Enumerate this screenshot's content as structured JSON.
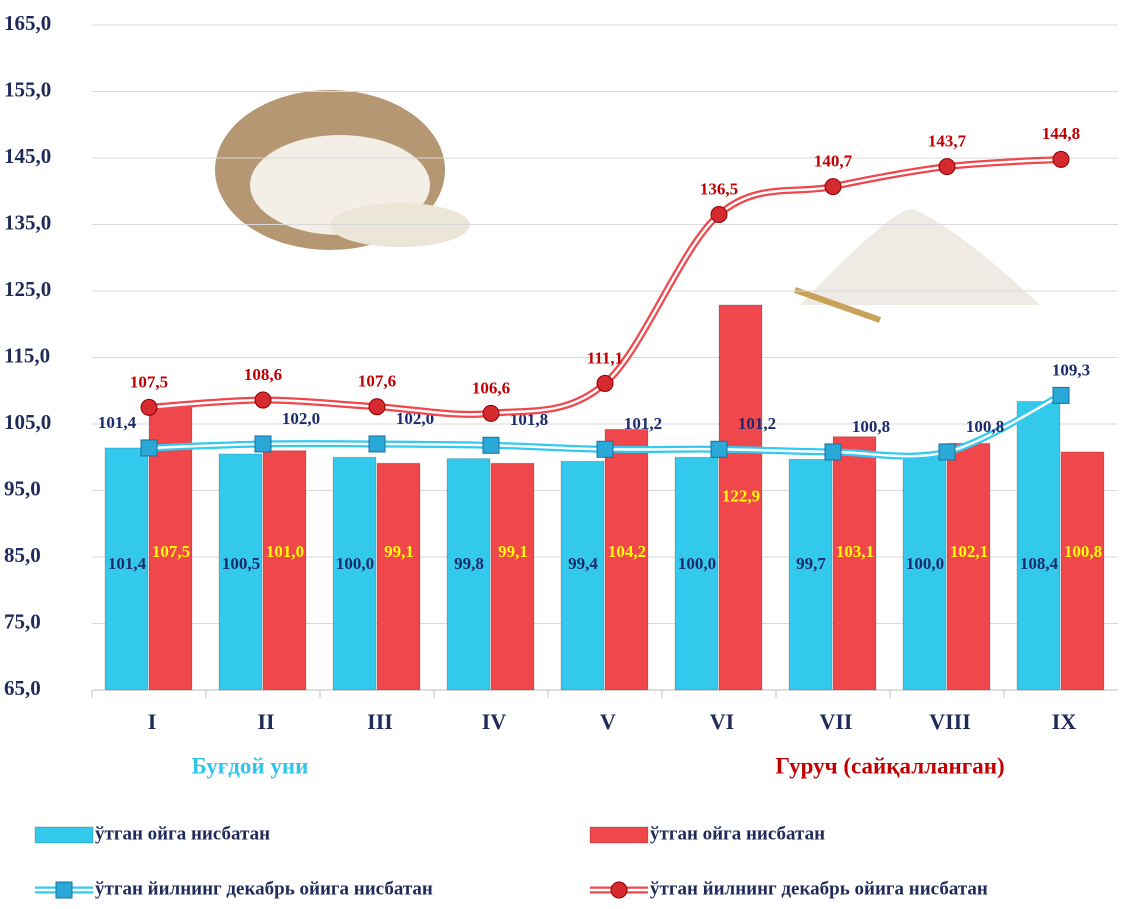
{
  "chart_data": {
    "type": "bar",
    "categories": [
      "I",
      "II",
      "III",
      "IV",
      "V",
      "VI",
      "VII",
      "VIII",
      "IX"
    ],
    "ylim": [
      65,
      165
    ],
    "yticks": [
      {
        "value": 65,
        "label": "65,0"
      },
      {
        "value": 75,
        "label": "75,0"
      },
      {
        "value": 85,
        "label": "85,0"
      },
      {
        "value": 95,
        "label": "95,0"
      },
      {
        "value": 105,
        "label": "105,0"
      },
      {
        "value": 115,
        "label": "115,0"
      },
      {
        "value": 125,
        "label": "125,0"
      },
      {
        "value": 135,
        "label": "135,0"
      },
      {
        "value": 145,
        "label": "145,0"
      },
      {
        "value": 155,
        "label": "155,0"
      },
      {
        "value": 165,
        "label": "165,0"
      }
    ],
    "grid": true,
    "groups": [
      {
        "name": "Буғдой уни",
        "color": "#33c4ea"
      },
      {
        "name": "Гуруч (сайқалланган)",
        "color": "#c00000"
      }
    ],
    "series": [
      {
        "name": "ўтган ойга нисбатан",
        "type": "bar",
        "color": "#33c9ec",
        "label_color": "#1a2a6c",
        "values": [
          101.4,
          100.5,
          100.0,
          99.8,
          99.4,
          100.0,
          99.7,
          100.0,
          108.4
        ],
        "value_labels": [
          "101,4",
          "100,5",
          "100,0",
          "99,8",
          "99,4",
          "100,0",
          "99,7",
          "100,0",
          "108,4"
        ]
      },
      {
        "name": "ўтган ойга нисбатан",
        "type": "bar",
        "color": "#f0474c",
        "label_color": "#ffff00",
        "values": [
          107.5,
          101.0,
          99.1,
          99.1,
          104.2,
          122.9,
          103.1,
          102.1,
          100.8
        ],
        "value_labels": [
          "107,5",
          "101,0",
          "99,1",
          "99,1",
          "104,2",
          "122,9",
          "103,1",
          "102,1",
          "100,8"
        ]
      },
      {
        "name": "ўтган йилнинг декабрь ойига нисбатан",
        "type": "line",
        "marker": "square",
        "color": "#33c9f0",
        "label_color": "#1a2a6c",
        "values": [
          101.4,
          102.0,
          102.0,
          101.8,
          101.2,
          101.2,
          100.8,
          100.8,
          109.3
        ],
        "value_labels": [
          "101,4",
          "102,0",
          "102,0",
          "101,8",
          "101,2",
          "101,2",
          "100,8",
          "100,8",
          "109,3"
        ]
      },
      {
        "name": "ўтган йилнинг декабрь ойига нисбатан",
        "type": "line",
        "marker": "circle",
        "color": "#f0474c",
        "label_color": "#c00000",
        "values": [
          107.5,
          108.6,
          107.6,
          106.6,
          111.1,
          136.5,
          140.7,
          143.7,
          144.8
        ],
        "value_labels": [
          "107,5",
          "108,6",
          "107,6",
          "106,6",
          "111,1",
          "136,5",
          "140,7",
          "143,7",
          "144,8"
        ]
      }
    ]
  }
}
